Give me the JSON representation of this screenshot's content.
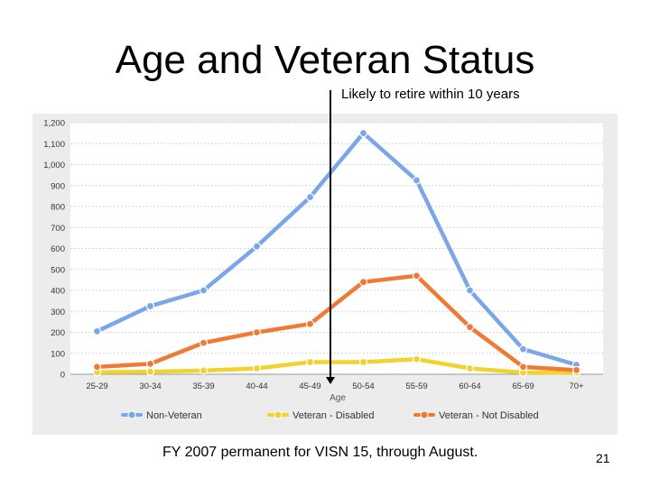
{
  "slide": {
    "title": "Age and Veteran Status",
    "annotation": "Likely to retire within 10 years",
    "footer": "FY 2007 permanent for VISN 15, through August.",
    "page_number": "21"
  },
  "chart_data": {
    "type": "line",
    "title": "",
    "xlabel": "Age",
    "ylabel": "",
    "categories": [
      "25-29",
      "30-34",
      "35-39",
      "40-44",
      "45-49",
      "50-54",
      "55-59",
      "60-64",
      "65-69",
      "70+"
    ],
    "ylim": [
      0,
      1200
    ],
    "yticks": [
      0,
      100,
      200,
      300,
      400,
      500,
      600,
      700,
      800,
      900,
      1000,
      1100,
      1200
    ],
    "ytick_labels": [
      "0",
      "100",
      "200",
      "300",
      "400",
      "500",
      "600",
      "700",
      "800",
      "900",
      "1,000",
      "1,100",
      "1,200"
    ],
    "grid": "horizontal",
    "legend_position": "bottom",
    "series": [
      {
        "name": "Non-Veteran",
        "color": "#7ba7ea",
        "values": [
          205,
          325,
          400,
          610,
          845,
          1150,
          925,
          400,
          120,
          45
        ]
      },
      {
        "name": "Veteran - Disabled",
        "color": "#f2d22e",
        "values": [
          10,
          12,
          18,
          28,
          58,
          58,
          72,
          28,
          8,
          8
        ]
      },
      {
        "name": "Veteran - Not Disabled",
        "color": "#ef7a35",
        "values": [
          35,
          50,
          150,
          200,
          240,
          440,
          470,
          225,
          35,
          20
        ]
      }
    ]
  }
}
